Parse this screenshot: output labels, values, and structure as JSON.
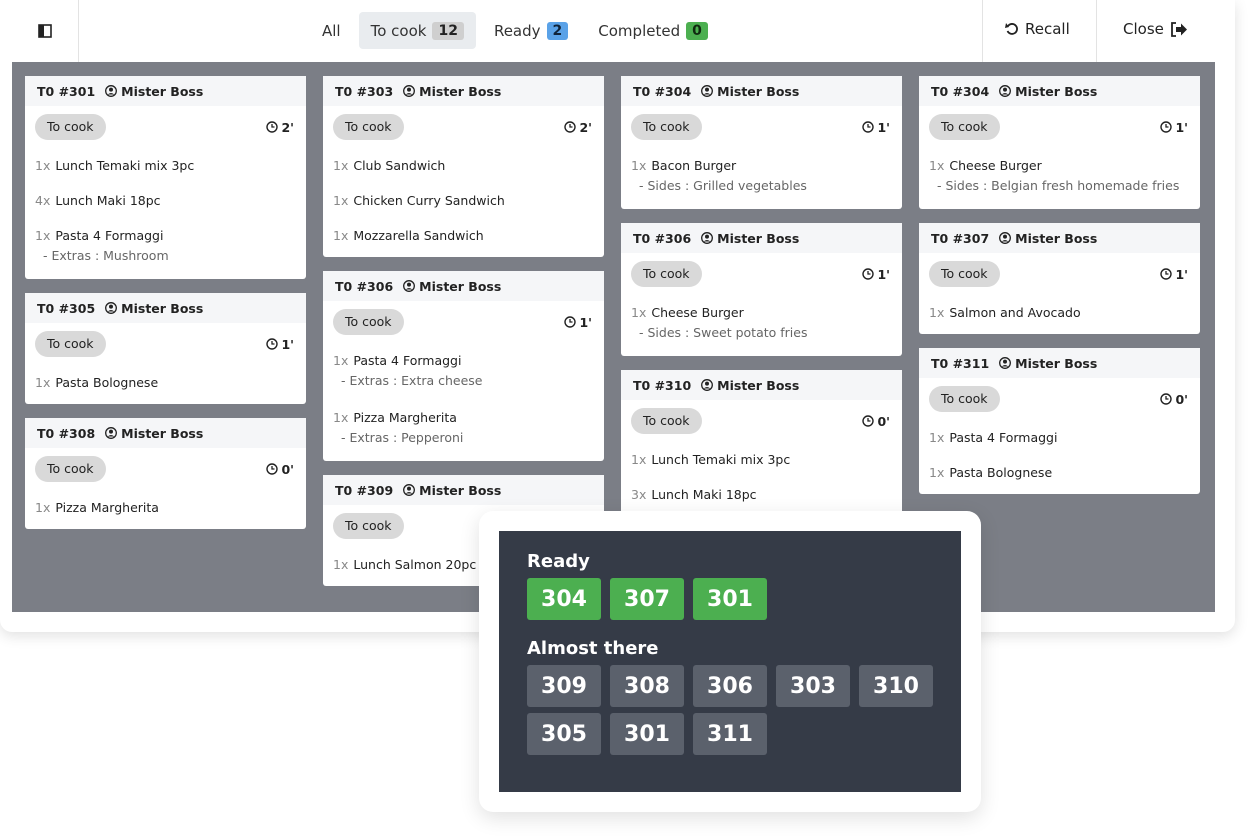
{
  "toolbar": {
    "tabs": [
      {
        "label": "All"
      },
      {
        "label": "To cook",
        "count": 12
      },
      {
        "label": "Ready",
        "count": 2
      },
      {
        "label": "Completed",
        "count": 0
      }
    ],
    "recall": "Recall",
    "close": "Close"
  },
  "columns": [
    [
      {
        "table": "T0 #301",
        "customer": "Mister Boss",
        "status": "To cook",
        "time": "2'",
        "items": [
          {
            "qty": "1x",
            "name": "Lunch Temaki mix 3pc"
          },
          {
            "qty": "4x",
            "name": "Lunch Maki 18pc"
          },
          {
            "qty": "1x",
            "name": "Pasta 4 Formaggi",
            "note": "- Extras : Mushroom"
          }
        ]
      },
      {
        "table": "T0 #305",
        "customer": "Mister Boss",
        "status": "To cook",
        "time": "1'",
        "items": [
          {
            "qty": "1x",
            "name": "Pasta Bolognese"
          }
        ]
      },
      {
        "table": "T0 #308",
        "customer": "Mister Boss",
        "status": "To cook",
        "time": "0'",
        "items": [
          {
            "qty": "1x",
            "name": "Pizza Margherita"
          }
        ]
      }
    ],
    [
      {
        "table": "T0 #303",
        "customer": "Mister Boss",
        "status": "To cook",
        "time": "2'",
        "items": [
          {
            "qty": "1x",
            "name": "Club Sandwich"
          },
          {
            "qty": "1x",
            "name": "Chicken Curry Sandwich"
          },
          {
            "qty": "1x",
            "name": "Mozzarella Sandwich"
          }
        ]
      },
      {
        "table": "T0 #306",
        "customer": "Mister Boss",
        "status": "To cook",
        "time": "1'",
        "items": [
          {
            "qty": "1x",
            "name": "Pasta 4 Formaggi",
            "note": "- Extras : Extra cheese"
          },
          {
            "qty": "1x",
            "name": "Pizza Margherita",
            "note": "- Extras : Pepperoni"
          }
        ]
      },
      {
        "table": "T0 #309",
        "customer": "Mister Boss",
        "status": "To cook",
        "items": [
          {
            "qty": "1x",
            "name": "Lunch Salmon 20pc"
          }
        ]
      }
    ],
    [
      {
        "table": "T0 #304",
        "customer": "Mister Boss",
        "status": "To cook",
        "time": "1'",
        "items": [
          {
            "qty": "1x",
            "name": "Bacon Burger",
            "note": "- Sides : Grilled vegetables"
          }
        ]
      },
      {
        "table": "T0 #306",
        "customer": "Mister Boss",
        "status": "To cook",
        "time": "1'",
        "items": [
          {
            "qty": "1x",
            "name": "Cheese Burger",
            "note": "- Sides : Sweet potato fries"
          }
        ]
      },
      {
        "table": "T0 #310",
        "customer": "Mister Boss",
        "status": "To cook",
        "time": "0'",
        "items": [
          {
            "qty": "1x",
            "name": "Lunch Temaki mix 3pc"
          },
          {
            "qty": "3x",
            "name": "Lunch Maki 18pc"
          }
        ]
      }
    ],
    [
      {
        "table": "T0 #304",
        "customer": "Mister Boss",
        "status": "To cook",
        "time": "1'",
        "items": [
          {
            "qty": "1x",
            "name": "Cheese Burger",
            "note": "- Sides : Belgian fresh homemade fries"
          }
        ]
      },
      {
        "table": "T0 #307",
        "customer": "Mister Boss",
        "status": "To cook",
        "time": "1'",
        "items": [
          {
            "qty": "1x",
            "name": "Salmon and Avocado"
          }
        ]
      },
      {
        "table": "T0 #311",
        "customer": "Mister Boss",
        "status": "To cook",
        "time": "0'",
        "items": [
          {
            "qty": "1x",
            "name": "Pasta 4 Formaggi"
          },
          {
            "qty": "1x",
            "name": "Pasta Bolognese"
          }
        ]
      }
    ]
  ],
  "display": {
    "ready_title": "Ready",
    "ready": [
      "304",
      "307",
      "301"
    ],
    "almost_title": "Almost there",
    "almost": [
      "309",
      "308",
      "306",
      "303",
      "310",
      "305",
      "301",
      "311"
    ]
  }
}
